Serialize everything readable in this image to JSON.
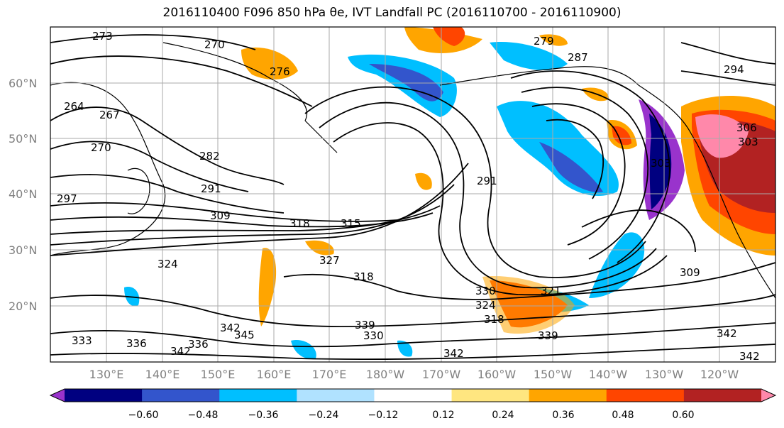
{
  "title": "2016110400 F096 850 hPa θe, IVT Landfall PC (2016110700 - 2016110900)",
  "map": {
    "lat_labels": [
      "60°N",
      "50°N",
      "40°N",
      "30°N",
      "20°N"
    ],
    "lon_labels": [
      "130°E",
      "140°E",
      "150°E",
      "160°E",
      "170°E",
      "180°W",
      "170°W",
      "160°W",
      "150°W",
      "140°W",
      "130°W",
      "120°W"
    ],
    "contour_labels": [
      "273",
      "270",
      "276",
      "264",
      "267",
      "270",
      "282",
      "291",
      "309",
      "318",
      "315",
      "291",
      "297",
      "324",
      "309",
      "327",
      "318",
      "330",
      "324",
      "318",
      "321",
      "339",
      "336",
      "342",
      "345",
      "342",
      "330",
      "339",
      "333",
      "336",
      "342",
      "342",
      "294",
      "303",
      "306",
      "287",
      "303",
      "342",
      "279"
    ]
  },
  "colorbar": {
    "tick_labels": [
      "−0.60",
      "−0.48",
      "−0.36",
      "−0.24",
      "−0.12",
      "0.12",
      "0.24",
      "0.36",
      "0.48",
      "0.60"
    ],
    "colors": [
      "#9933cc",
      "#000080",
      "#3355cc",
      "#00bfff",
      "#b0e2ff",
      "#ffffff",
      "#ffe680",
      "#ffa500",
      "#ff4500",
      "#b22222",
      "#ff88aa"
    ]
  }
}
